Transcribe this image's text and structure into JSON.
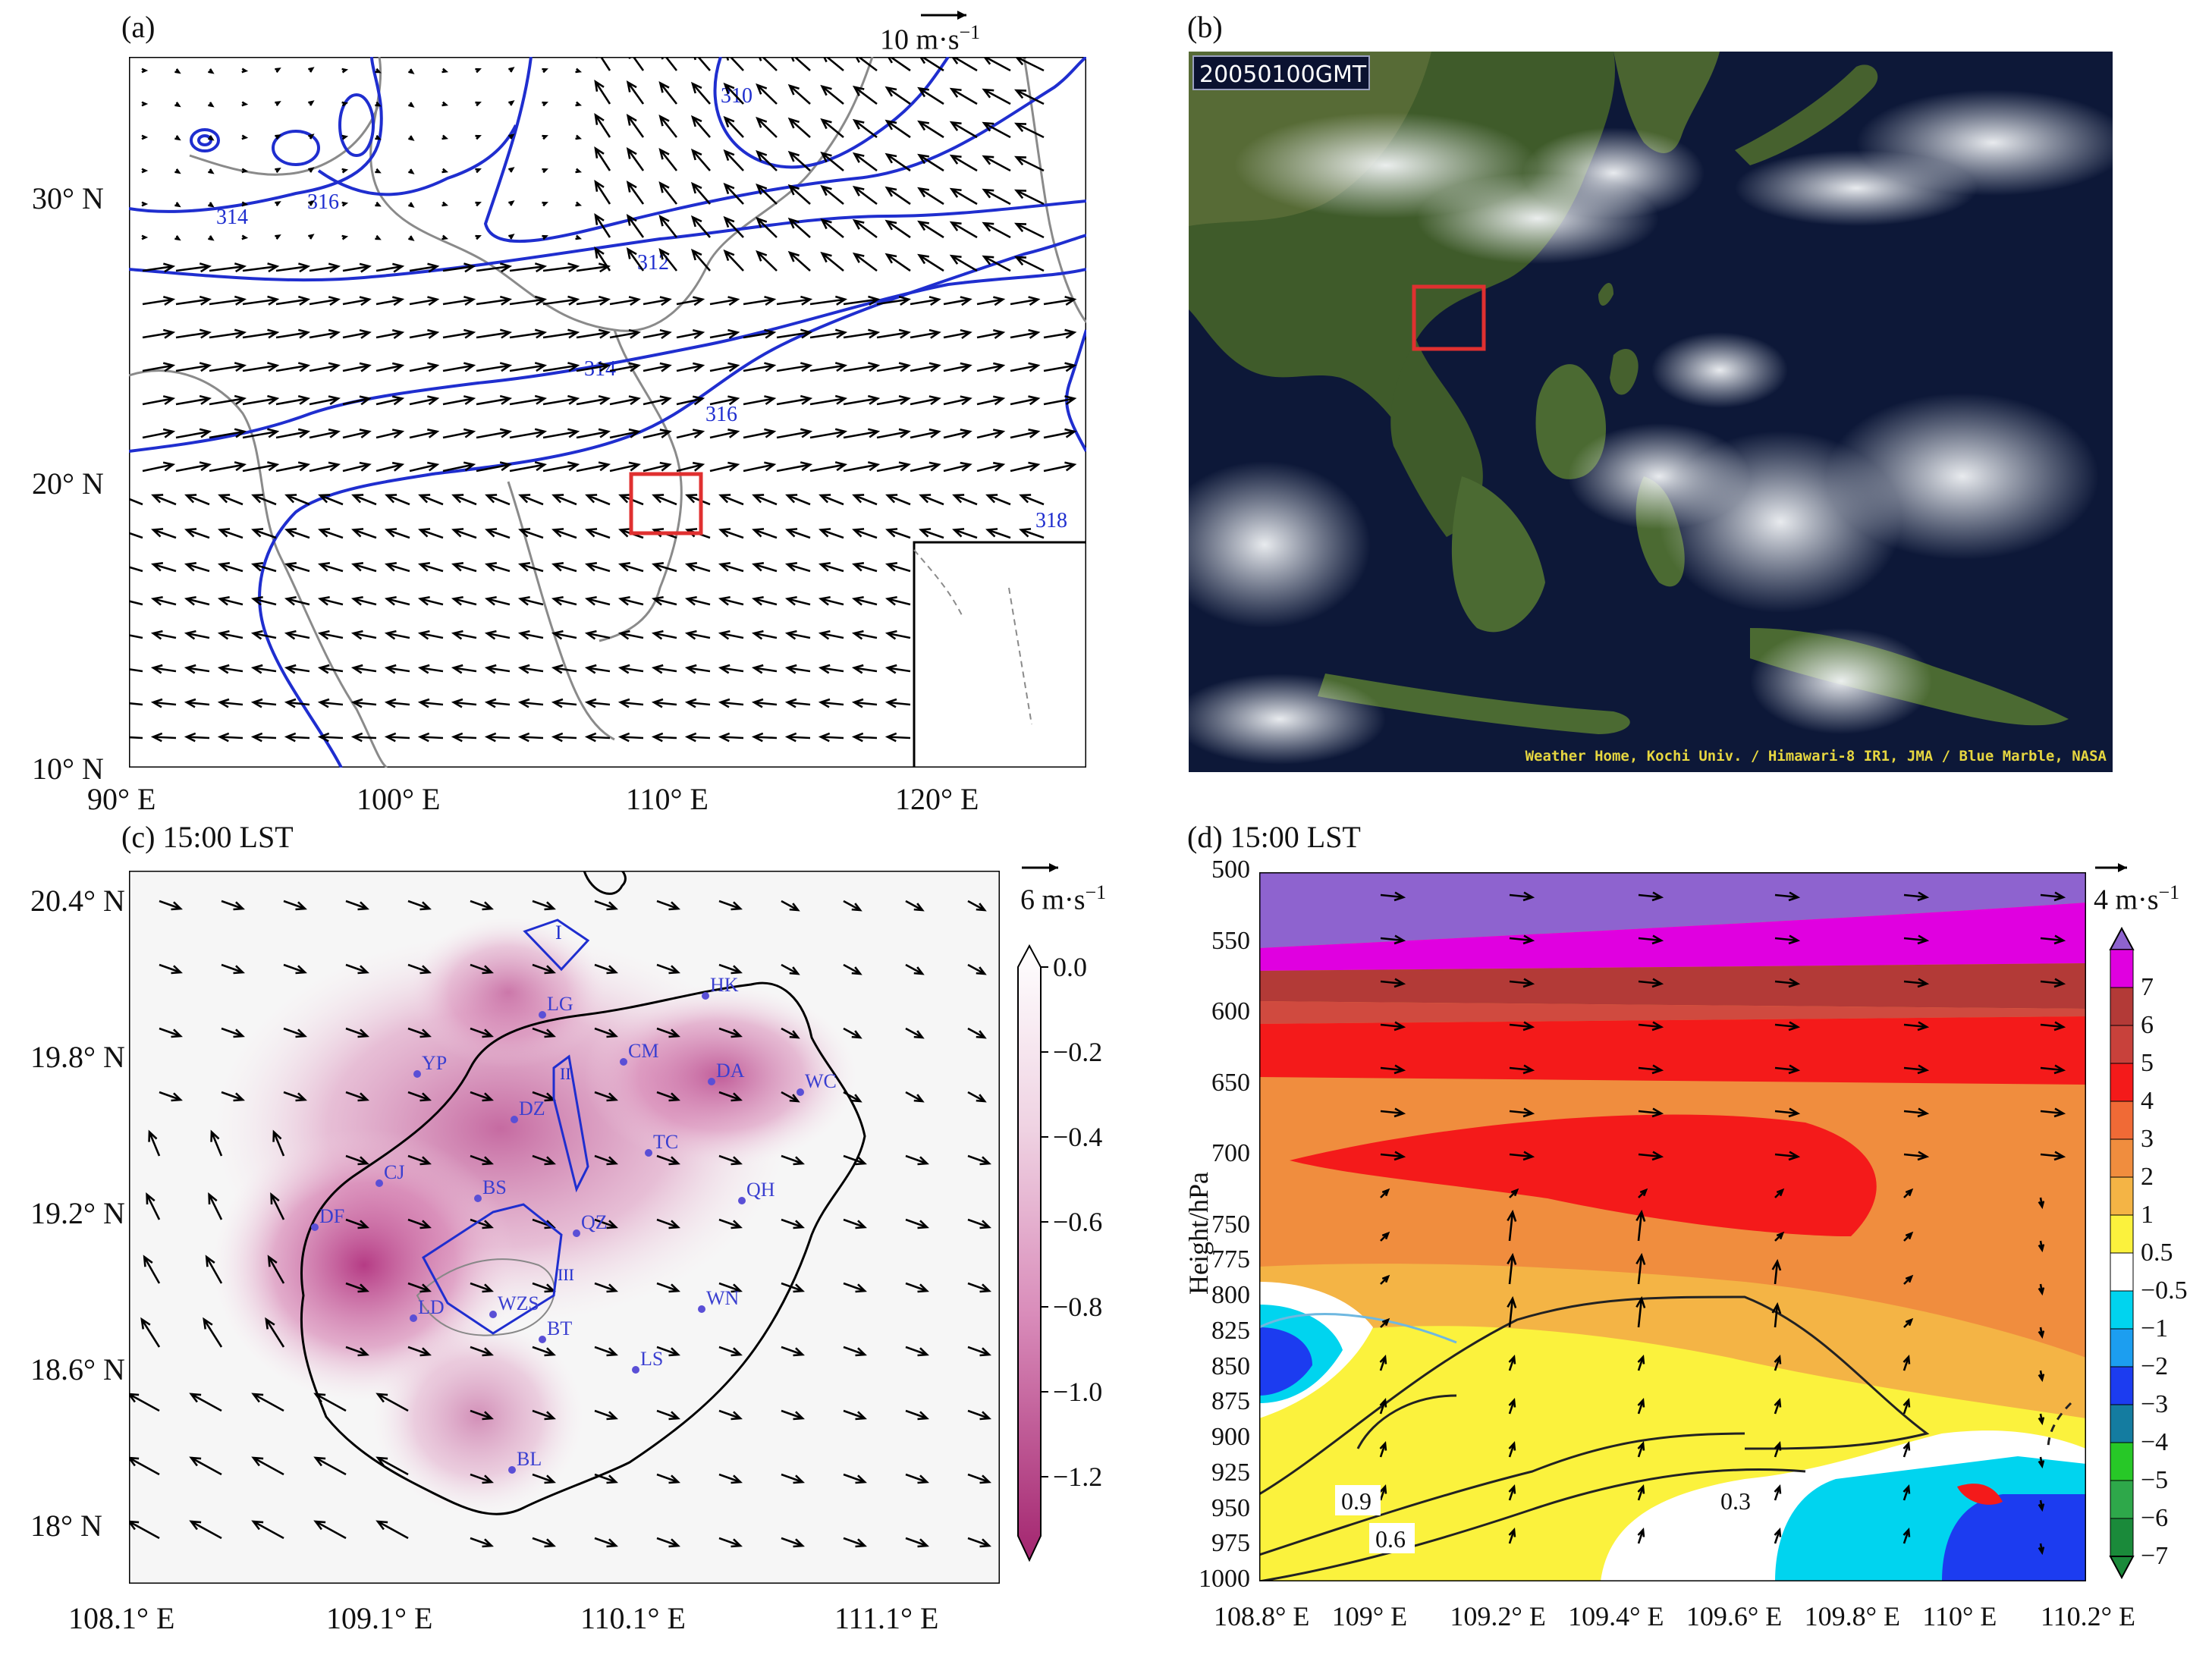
{
  "panels": {
    "a": {
      "label": "(a)",
      "ref_vector": "10 m·s",
      "ref_exp": "−1",
      "lon_ticks": [
        "90° E",
        "100° E",
        "110° E",
        "120° E"
      ],
      "lat_ticks": [
        "30° N",
        "20° N",
        "10° N"
      ],
      "contour_labels": [
        "310",
        "312",
        "314",
        "316",
        "314",
        "316",
        "318"
      ]
    },
    "b": {
      "label": "(b)",
      "timestamp": "20050100GMT",
      "credit": "Weather Home, Kochi Univ. / Himawari-8 IR1, JMA / Blue Marble, NASA"
    },
    "c": {
      "label": "(c) 15:00 LST",
      "ref_vector": "6 m·s",
      "ref_exp": "−1",
      "lon_ticks": [
        "108.1° E",
        "109.1° E",
        "110.1° E",
        "111.1° E"
      ],
      "lat_ticks": [
        "20.4° N",
        "19.8° N",
        "19.2° N",
        "18.6° N",
        "18° N"
      ],
      "colorbar_ticks": [
        "0.0",
        "−0.2",
        "−0.4",
        "−0.6",
        "−0.8",
        "−1.0",
        "−1.2"
      ],
      "stations": [
        "HK",
        "LG",
        "YP",
        "CM",
        "DA",
        "WC",
        "DZ",
        "TC",
        "CJ",
        "BS",
        "QH",
        "DF",
        "QZ",
        "LD",
        "WZS",
        "WN",
        "BT",
        "LS",
        "BL"
      ],
      "region_labels": [
        "I",
        "II",
        "III"
      ]
    },
    "d": {
      "label": "(d) 15:00 LST",
      "ref_vector": "4 m·s",
      "ref_exp": "−1",
      "ylabel": "Height/hPa",
      "pressure_ticks": [
        "500",
        "550",
        "600",
        "650",
        "700",
        "750",
        "775",
        "800",
        "825",
        "850",
        "875",
        "900",
        "925",
        "950",
        "975",
        "1000"
      ],
      "lon_ticks": [
        "108.8° E",
        "109° E",
        "109.2° E",
        "109.4° E",
        "109.6° E",
        "109.8° E",
        "110° E",
        "110.2° E"
      ],
      "colorbar_ticks": [
        "7",
        "6",
        "5",
        "4",
        "3",
        "2",
        "1",
        "0.5",
        "−0.5",
        "−1",
        "−2",
        "−3",
        "−4",
        "−5",
        "−6",
        "−7"
      ],
      "contour_labels": [
        "0.9",
        "0.6",
        "0.3"
      ]
    }
  },
  "colors": {
    "contour_blue": "#1f2ecf",
    "box_red": "#e03030",
    "vector": "#000000",
    "ocean_dark": "#0d1838",
    "land_green": "#3f5b2a"
  }
}
